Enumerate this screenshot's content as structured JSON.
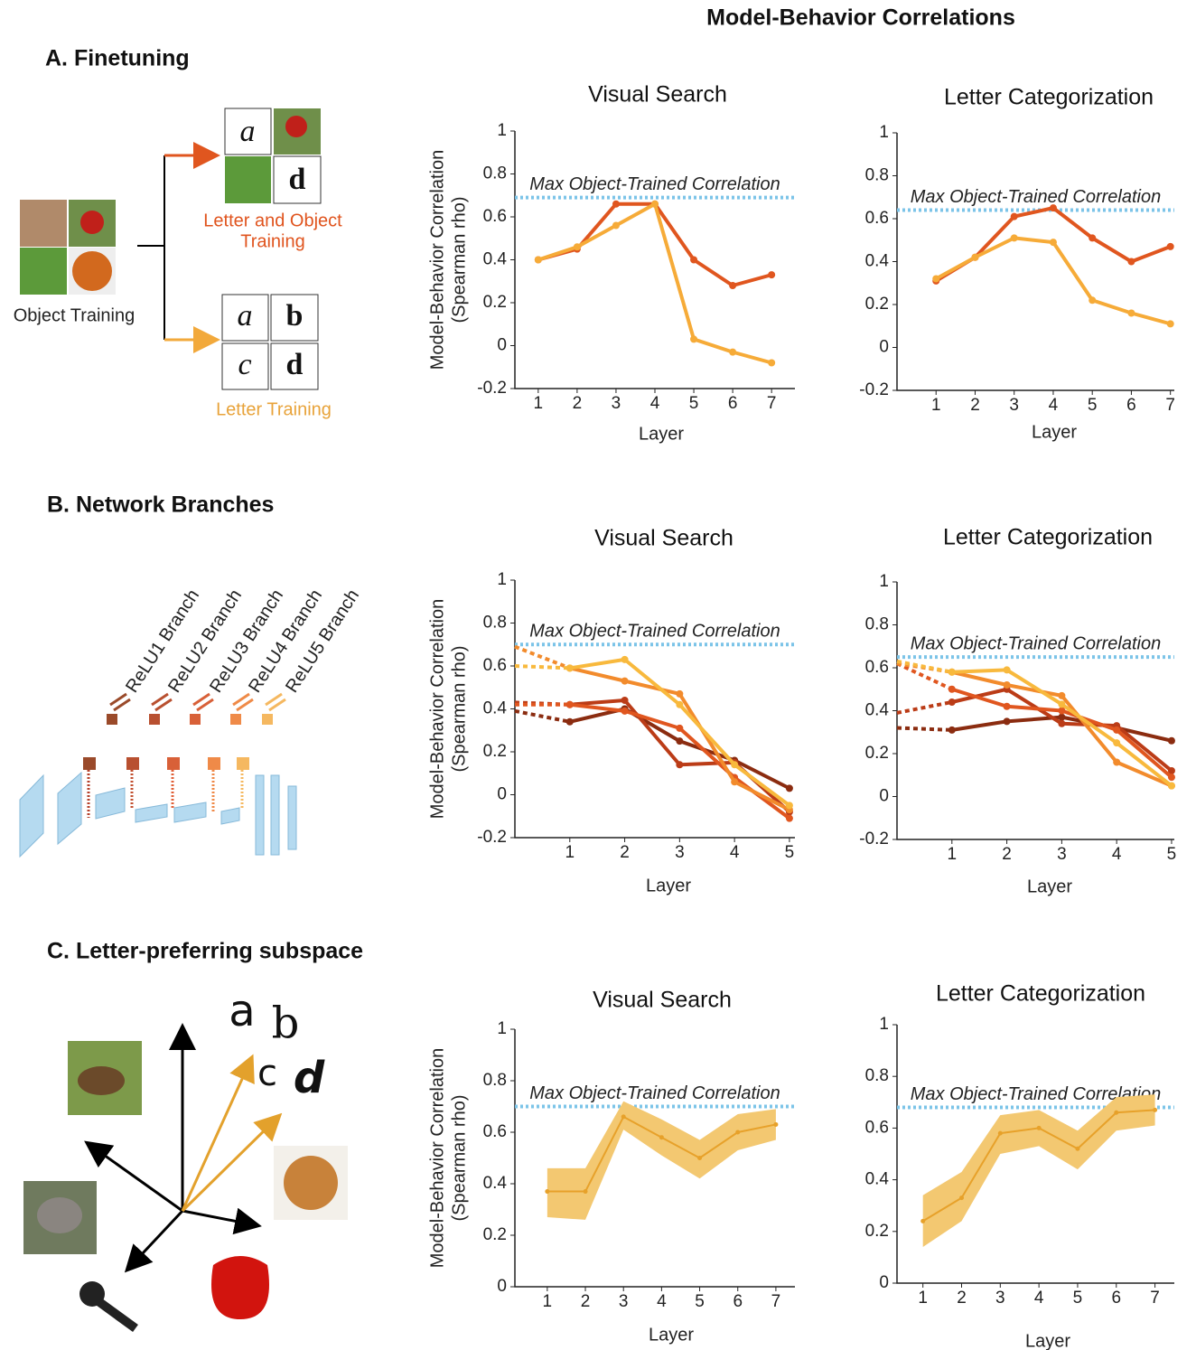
{
  "title": "Model-Behavior Correlations",
  "sections": {
    "a": {
      "label": "A. Finetuning",
      "object_training": "Object Training",
      "letter_object_training": [
        "Letter and Object",
        "Training"
      ],
      "letter_training": "Letter Training",
      "tiles_top": [
        "a",
        "d"
      ],
      "tiles_bottom": [
        "a",
        "b",
        "c",
        "d"
      ]
    },
    "b": {
      "label": "B. Network Branches",
      "branches": [
        "ReLU1 Branch",
        "ReLU2 Branch",
        "ReLU3 Branch",
        "ReLU4 Branch",
        "ReLU5 Branch"
      ]
    },
    "c": {
      "label": "C. Letter-preferring subspace",
      "letters": [
        "a",
        "b",
        "c",
        "d"
      ]
    }
  },
  "chart_data": [
    {
      "type": "line",
      "title": "Visual Search",
      "xlabel": "Layer",
      "ylabel": [
        "Model-Behavior Correlation",
        "(Spearman rho)"
      ],
      "x": [
        1,
        2,
        3,
        4,
        5,
        6,
        7
      ],
      "xlim": [
        0.4,
        7.6
      ],
      "xticks": [
        1,
        2,
        3,
        4,
        5,
        6,
        7
      ],
      "ylim": [
        -0.2,
        1
      ],
      "yticks": [
        -0.2,
        0,
        0.2,
        0.4,
        0.6,
        0.8,
        1
      ],
      "reference_line": {
        "label": "Max Object-Trained Correlation",
        "value": 0.69,
        "color": "#7cc4e8"
      },
      "series": [
        {
          "color": "#e0561f",
          "values": [
            0.4,
            0.45,
            0.66,
            0.66,
            0.4,
            0.28,
            0.33
          ]
        },
        {
          "color": "#f6ab38",
          "values": [
            0.4,
            0.46,
            0.56,
            0.66,
            0.03,
            -0.03,
            -0.08
          ]
        }
      ]
    },
    {
      "type": "line",
      "title": "Letter Categorization",
      "xlabel": "Layer",
      "x": [
        1,
        2,
        3,
        4,
        5,
        6,
        7
      ],
      "xlim": [
        0,
        7.1
      ],
      "xticks": [
        1,
        2,
        3,
        4,
        5,
        6,
        7
      ],
      "ylim": [
        -0.2,
        1
      ],
      "yticks": [
        -0.2,
        0,
        0.2,
        0.4,
        0.6,
        0.8,
        1
      ],
      "reference_line": {
        "label": "Max Object-Trained Correlation",
        "value": 0.64,
        "color": "#7cc4e8"
      },
      "series": [
        {
          "color": "#e0561f",
          "values": [
            0.31,
            0.42,
            0.61,
            0.65,
            0.51,
            0.4,
            0.47
          ]
        },
        {
          "color": "#f6ab38",
          "values": [
            0.32,
            0.42,
            0.51,
            0.49,
            0.22,
            0.16,
            0.11
          ]
        }
      ]
    },
    {
      "type": "line",
      "title": "Visual Search",
      "xlabel": "Layer",
      "ylabel": [
        "Model-Behavior Correlation",
        "(Spearman rho)"
      ],
      "x": [
        0,
        1,
        2,
        3,
        4,
        5
      ],
      "xlim": [
        0,
        5.1
      ],
      "xticks": [
        1,
        2,
        3,
        4,
        5
      ],
      "dashed_first_segment": true,
      "ylim": [
        -0.2,
        1
      ],
      "yticks": [
        -0.2,
        0,
        0.2,
        0.4,
        0.6,
        0.8,
        1
      ],
      "reference_line": {
        "label": "Max Object-Trained Correlation",
        "value": 0.7,
        "color": "#7cc4e8"
      },
      "series": [
        {
          "color": "#8b2c10",
          "values": [
            0.39,
            0.34,
            0.4,
            0.25,
            0.16,
            0.03
          ]
        },
        {
          "color": "#bb3c17",
          "values": [
            0.43,
            0.42,
            0.44,
            0.14,
            0.15,
            -0.08
          ]
        },
        {
          "color": "#e0561f",
          "values": [
            0.42,
            0.42,
            0.39,
            0.31,
            0.08,
            -0.11
          ]
        },
        {
          "color": "#f28b2c",
          "values": [
            0.69,
            0.59,
            0.53,
            0.47,
            0.06,
            -0.07
          ]
        },
        {
          "color": "#f8b93d",
          "values": [
            0.6,
            0.59,
            0.63,
            0.42,
            0.14,
            -0.05
          ]
        }
      ]
    },
    {
      "type": "line",
      "title": "Letter Categorization",
      "xlabel": "Layer",
      "x": [
        0,
        1,
        2,
        3,
        4,
        5
      ],
      "xlim": [
        0,
        5.05
      ],
      "xticks": [
        1,
        2,
        3,
        4,
        5
      ],
      "dashed_first_segment": true,
      "ylim": [
        -0.2,
        1
      ],
      "yticks": [
        -0.2,
        0,
        0.2,
        0.4,
        0.6,
        0.8,
        1
      ],
      "reference_line": {
        "label": "Max Object-Trained Correlation",
        "value": 0.65,
        "color": "#7cc4e8"
      },
      "series": [
        {
          "color": "#8b2c10",
          "values": [
            0.32,
            0.31,
            0.35,
            0.37,
            0.32,
            0.26
          ]
        },
        {
          "color": "#bb3c17",
          "values": [
            0.39,
            0.44,
            0.5,
            0.34,
            0.33,
            0.12
          ]
        },
        {
          "color": "#e0561f",
          "values": [
            0.62,
            0.5,
            0.42,
            0.4,
            0.31,
            0.09
          ]
        },
        {
          "color": "#f28b2c",
          "values": [
            0.62,
            0.58,
            0.52,
            0.47,
            0.16,
            0.05
          ]
        },
        {
          "color": "#f8b93d",
          "values": [
            0.63,
            0.58,
            0.59,
            0.43,
            0.25,
            0.05
          ]
        }
      ]
    },
    {
      "type": "line",
      "title": "Visual Search",
      "xlabel": "Layer",
      "ylabel": [
        "Model-Behavior Correlation",
        "(Spearman rho)"
      ],
      "x": [
        1,
        2,
        3,
        4,
        5,
        6,
        7
      ],
      "xlim": [
        0.15,
        7.5
      ],
      "xticks": [
        1,
        2,
        3,
        4,
        5,
        6,
        7
      ],
      "ylim": [
        0,
        1
      ],
      "yticks": [
        0,
        0.2,
        0.4,
        0.6,
        0.8,
        1
      ],
      "reference_line": {
        "label": "Max Object-Trained Correlation",
        "value": 0.7,
        "color": "#7cc4e8"
      },
      "series": [
        {
          "color": "#e7a12a",
          "band_color": "#f3c871",
          "values": [
            0.37,
            0.37,
            0.66,
            0.58,
            0.5,
            0.6,
            0.63
          ],
          "lower": [
            0.27,
            0.26,
            0.61,
            0.51,
            0.42,
            0.53,
            0.57
          ],
          "upper": [
            0.46,
            0.46,
            0.72,
            0.65,
            0.57,
            0.67,
            0.69
          ]
        }
      ]
    },
    {
      "type": "line",
      "title": "Letter Categorization",
      "xlabel": "Layer",
      "x": [
        1,
        2,
        3,
        4,
        5,
        6,
        7
      ],
      "xlim": [
        0.33,
        7.5
      ],
      "xticks": [
        1,
        2,
        3,
        4,
        5,
        6,
        7
      ],
      "ylim": [
        0,
        1
      ],
      "yticks": [
        0,
        0.2,
        0.4,
        0.6,
        0.8,
        1
      ],
      "reference_line": {
        "label": "Max Object-Trained Correlation",
        "value": 0.68,
        "color": "#7cc4e8"
      },
      "series": [
        {
          "color": "#e7a12a",
          "band_color": "#f3c871",
          "values": [
            0.24,
            0.33,
            0.58,
            0.6,
            0.52,
            0.66,
            0.67
          ],
          "lower": [
            0.14,
            0.24,
            0.5,
            0.53,
            0.44,
            0.59,
            0.61
          ],
          "upper": [
            0.34,
            0.43,
            0.65,
            0.67,
            0.59,
            0.72,
            0.73
          ]
        }
      ]
    }
  ]
}
